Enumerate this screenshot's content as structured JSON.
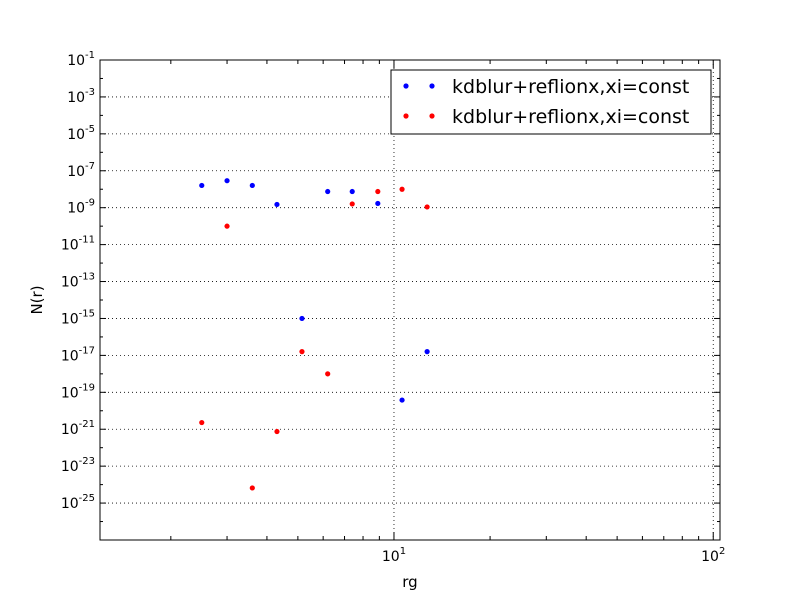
{
  "chart_data": {
    "type": "scatter",
    "xlabel": "rg",
    "ylabel": "N(r)",
    "xscale": "log",
    "yscale": "log",
    "xlim": [
      1.2,
      105
    ],
    "ylim": [
      1e-27,
      0.1
    ],
    "grid": true,
    "legend_position": "top-right",
    "x_ticks": [
      {
        "value": 10,
        "base": "10",
        "exp": "1"
      },
      {
        "value": 100,
        "base": "10",
        "exp": "2"
      }
    ],
    "y_ticks": [
      {
        "value": 0.1,
        "base": "10",
        "exp": "-1"
      },
      {
        "value": 0.001,
        "base": "10",
        "exp": "-3"
      },
      {
        "value": 1e-05,
        "base": "10",
        "exp": "-5"
      },
      {
        "value": 1e-07,
        "base": "10",
        "exp": "-7"
      },
      {
        "value": 1e-09,
        "base": "10",
        "exp": "-9"
      },
      {
        "value": 1e-11,
        "base": "10",
        "exp": "-11"
      },
      {
        "value": 1e-13,
        "base": "10",
        "exp": "-13"
      },
      {
        "value": 1e-15,
        "base": "10",
        "exp": "-15"
      },
      {
        "value": 1e-17,
        "base": "10",
        "exp": "-17"
      },
      {
        "value": 1e-19,
        "base": "10",
        "exp": "-19"
      },
      {
        "value": 1e-21,
        "base": "10",
        "exp": "-21"
      },
      {
        "value": 1e-23,
        "base": "10",
        "exp": "-23"
      },
      {
        "value": 1e-25,
        "base": "10",
        "exp": "-25"
      }
    ],
    "series": [
      {
        "name": "kdblur+reflionx,xi=const",
        "color": "#0000ff",
        "points": [
          [
            2.5,
            1.6e-08
          ],
          [
            3.0,
            2.9e-08
          ],
          [
            3.6,
            1.6e-08
          ],
          [
            4.3,
            1.5e-09
          ],
          [
            5.15,
            1e-15
          ],
          [
            6.2,
            7.5e-09
          ],
          [
            7.4,
            7.5e-09
          ],
          [
            8.9,
            1.7e-09
          ],
          [
            10.6,
            3.8e-20
          ],
          [
            12.7,
            1.6e-17
          ]
        ]
      },
      {
        "name": "kdblur+reflionx,xi=const",
        "color": "#ff0000",
        "points": [
          [
            2.5,
            2.3e-21
          ],
          [
            3.0,
            1e-10
          ],
          [
            3.6,
            6.6e-25
          ],
          [
            4.3,
            7.5e-22
          ],
          [
            5.15,
            1.6e-17
          ],
          [
            6.2,
            1e-18
          ],
          [
            7.4,
            1.6e-09
          ],
          [
            8.9,
            7.5e-09
          ],
          [
            10.6,
            1e-08
          ],
          [
            12.7,
            1.1e-09
          ]
        ]
      }
    ]
  }
}
